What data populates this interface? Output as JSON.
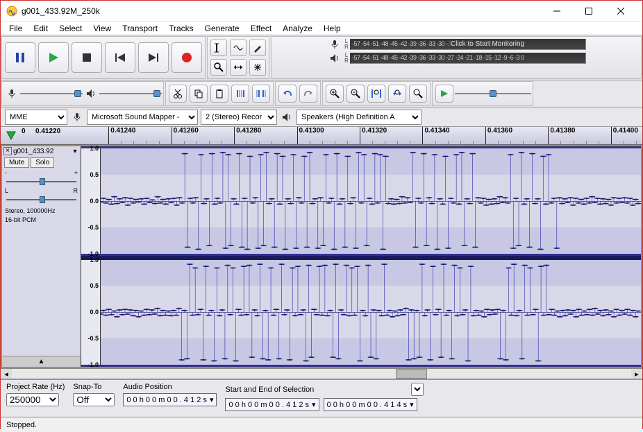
{
  "window": {
    "title": "g001_433.92M_250k"
  },
  "menu": [
    "File",
    "Edit",
    "Select",
    "View",
    "Transport",
    "Tracks",
    "Generate",
    "Effect",
    "Analyze",
    "Help"
  ],
  "meter": {
    "ticks": "-57 -54 -51 -48 -45 -42 -39 -36 -33 -30 -27 -24 -21 -18 -15 -12  -9  -6  -3  0",
    "rec_overlay": "Click to Start Monitoring",
    "rec_ticks_right": "-18 -15 -12  -9  -6  -3  0"
  },
  "devices": {
    "host": "MME",
    "input": "Microsoft Sound Mapper - ",
    "channels": "2 (Stereo) Recor",
    "output": "Speakers (High Definition A"
  },
  "timeline": {
    "start_label": "0",
    "cursor": "0.41220",
    "ticks": [
      "0.41240",
      "0.41260",
      "0.41280",
      "0.41300",
      "0.41320",
      "0.41340",
      "0.41360",
      "0.41380",
      "0.41400"
    ]
  },
  "track": {
    "name": "g001_433.92",
    "mute": "Mute",
    "solo": "Solo",
    "gain_minus": "-",
    "gain_plus": "+",
    "pan_l": "L",
    "pan_r": "R",
    "format1": "Stereo, 100000Hz",
    "format2": "16-bit PCM",
    "yticks": [
      "1.0",
      "0.5",
      "0.0",
      "-0.5",
      "-1.0"
    ]
  },
  "waveform": {
    "stroke": "#2828a8",
    "dot": "#181870",
    "center": "#6060a0",
    "band_bg": "#d8d8e8",
    "ch1": [
      -0.02,
      0.05,
      -0.04,
      0.03,
      -0.06,
      0.08,
      -0.05,
      0.04,
      -0.03,
      0.06,
      -0.08,
      0.05,
      -0.04,
      0.03,
      -0.02,
      0.04,
      -0.06,
      0.05,
      -0.03,
      0.02,
      -0.05,
      0.08,
      -0.04,
      0.03,
      -0.06,
      0.04,
      -0.03,
      0.05,
      -0.08,
      0.06,
      -0.04,
      0.9,
      -0.88,
      0.05,
      -0.04,
      0.06,
      -0.92,
      0.88,
      -0.05,
      0.04,
      -0.85,
      0.9,
      -0.06,
      0.05,
      -0.04,
      0.92,
      -0.9,
      0.88,
      -0.85,
      0.04,
      -0.06,
      0.9,
      -0.88,
      0.05,
      -0.92,
      0.85,
      -0.04,
      0.06,
      -0.9,
      0.88,
      -0.85,
      0.92,
      -0.05,
      0.04,
      -0.88,
      0.9,
      -0.06,
      0.85,
      -0.92,
      0.04,
      -0.05,
      0.88,
      -0.9,
      0.06,
      -0.04,
      0.85,
      -0.88,
      0.92,
      -0.05,
      0.04,
      -0.9,
      0.06,
      -0.85,
      0.88,
      -0.04,
      0.05,
      -0.92,
      0.9,
      -0.06,
      0.04,
      -0.88,
      0.85,
      -0.05,
      0.06,
      -0.9,
      0.92,
      -0.04,
      0.88,
      -0.85,
      0.05,
      -0.06,
      0.9,
      -0.04,
      0.88,
      -0.92,
      0.85,
      -0.05,
      0.04,
      -0.06,
      0.03,
      -0.05,
      0.08,
      -0.04,
      0.06,
      -0.03,
      0.92,
      -0.88,
      0.05,
      -0.04,
      0.9,
      -0.85,
      0.06,
      -0.05,
      0.88,
      -0.92,
      0.04,
      -0.06,
      0.85,
      -0.9,
      0.05,
      -0.04,
      0.88,
      -0.06,
      0.92,
      -0.85,
      0.04,
      -0.05,
      0.9,
      -0.88,
      0.06,
      -0.04,
      0.05,
      -0.08,
      0.03,
      -0.06,
      0.04,
      -0.05,
      0.08,
      -0.03,
      0.06,
      -0.04,
      0.88,
      -0.9,
      0.05,
      -0.85,
      0.92,
      -0.06,
      0.04,
      -0.88,
      0.9,
      -0.05,
      0.04,
      -0.92,
      0.85,
      -0.06,
      0.88,
      -0.04,
      0.05,
      -0.9,
      0.06,
      -0.05,
      0.04,
      -0.03,
      0.06,
      -0.08,
      0.05,
      -0.04,
      0.03,
      -0.06,
      0.05,
      -0.04,
      0.08,
      -0.03,
      0.05,
      -0.06,
      0.04,
      -0.05,
      0.03,
      -0.08,
      0.06,
      -0.04,
      0.05,
      -0.03,
      0.06,
      -0.04,
      0.05,
      -0.08,
      0.03,
      -0.05
    ],
    "ch2": [
      -0.03,
      0.04,
      -0.05,
      0.06,
      -0.04,
      0.03,
      -0.08,
      0.05,
      -0.04,
      0.06,
      -0.03,
      0.05,
      -0.06,
      0.04,
      -0.08,
      0.03,
      -0.05,
      0.06,
      -0.04,
      0.05,
      -0.03,
      0.08,
      -0.06,
      0.04,
      -0.05,
      0.03,
      -0.06,
      0.04,
      -0.05,
      0.08,
      -0.9,
      0.04,
      -0.88,
      0.92,
      -0.05,
      0.85,
      -0.04,
      0.06,
      -0.9,
      0.88,
      -0.05,
      0.04,
      -0.92,
      0.85,
      -0.06,
      0.05,
      -0.88,
      0.9,
      -0.04,
      0.85,
      -0.92,
      0.06,
      -0.05,
      0.88,
      -0.04,
      0.9,
      -0.85,
      0.05,
      -0.06,
      0.92,
      -0.88,
      0.04,
      -0.9,
      0.85,
      -0.05,
      0.06,
      -0.88,
      0.92,
      -0.04,
      0.05,
      -0.9,
      0.85,
      -0.06,
      0.88,
      -0.04,
      0.05,
      -0.92,
      0.9,
      -0.85,
      0.06,
      -0.04,
      0.88,
      -0.05,
      0.9,
      -0.06,
      0.04,
      -0.85,
      0.92,
      -0.88,
      0.05,
      -0.04,
      0.9,
      -0.06,
      0.85,
      -0.05,
      0.88,
      -0.92,
      0.04,
      -0.06,
      0.9,
      -0.85,
      0.05,
      -0.88,
      0.04,
      -0.06,
      0.92,
      -0.05,
      0.04,
      -0.08,
      0.03,
      -0.06,
      0.05,
      -0.04,
      0.08,
      -0.9,
      0.05,
      -0.88,
      0.04,
      -0.85,
      0.92,
      -0.06,
      0.05,
      -0.9,
      0.88,
      -0.04,
      0.06,
      -0.85,
      0.92,
      -0.05,
      0.04,
      -0.88,
      0.9,
      -0.06,
      0.85,
      -0.04,
      0.05,
      -0.92,
      0.88,
      -0.06,
      0.04,
      -0.05,
      0.03,
      -0.08,
      0.06,
      -0.04,
      0.05,
      -0.03,
      0.06,
      -0.88,
      0.04,
      -0.9,
      0.85,
      -0.05,
      0.92,
      -0.06,
      0.04,
      -0.88,
      0.9,
      -0.05,
      0.85,
      -0.04,
      0.06,
      -0.92,
      0.88,
      -0.05,
      0.9,
      -0.04,
      0.06,
      -0.05,
      0.03,
      -0.08,
      0.04,
      -0.06,
      0.05,
      -0.03,
      0.04,
      -0.08,
      0.06,
      -0.05,
      0.03,
      -0.04,
      0.06,
      -0.05,
      0.08,
      -0.03,
      0.04,
      -0.06,
      0.05,
      -0.04,
      0.03,
      -0.08,
      0.06,
      -0.05,
      0.04,
      -0.03,
      0.06,
      -0.05,
      0.04,
      -0.08,
      0.03
    ]
  },
  "selection": {
    "rate_label": "Project Rate (Hz)",
    "rate": "250000",
    "snap_label": "Snap-To",
    "snap": "Off",
    "pos_label": "Audio Position",
    "pos": "0 0 h 0 0 m 0 0 . 4 1 2 s",
    "range_label": "Start and End of Selection",
    "start": "0 0 h 0 0 m 0 0 . 4 1 2 s",
    "end": "0 0 h 0 0 m 0 0 . 4 1 4 s"
  },
  "status": "Stopped.",
  "scrollbar": {
    "thumb_left_pct": 62,
    "thumb_width_pct": 5
  }
}
